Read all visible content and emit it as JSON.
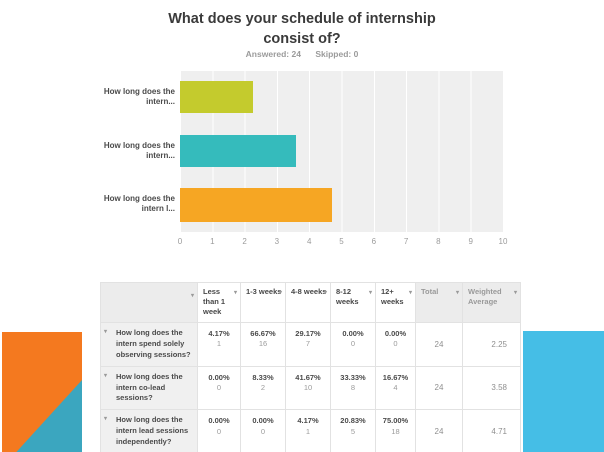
{
  "page": {
    "title_line1": "What does your schedule of internship",
    "title_line2": "consist of?",
    "answered": "Answered: 24",
    "skipped": "Skipped: 0"
  },
  "chart_data": {
    "type": "bar",
    "orientation": "horizontal",
    "title": "What does your schedule of internship consist of?",
    "categories": [
      "How long does the intern...",
      "How long does the intern...",
      "How long does the intern l..."
    ],
    "values": [
      2.25,
      3.58,
      4.71
    ],
    "bar_colors": [
      "#c4cb2d",
      "#35bbbc",
      "#f6a623"
    ],
    "xlim": [
      0,
      10
    ],
    "x_ticks": [
      "0",
      "1",
      "2",
      "3",
      "4",
      "5",
      "6",
      "7",
      "8",
      "9",
      "10"
    ],
    "plot_background": "#efefef",
    "gridline_color": "#ffffff",
    "grid": "vertical",
    "legend": "none"
  },
  "table": {
    "column_headers": [
      {
        "label": ""
      },
      {
        "label": "Less than 1 week"
      },
      {
        "label": "1-3 weeks"
      },
      {
        "label": "4-8 weeks"
      },
      {
        "label": "8-12 weeks"
      },
      {
        "label": "12+ weeks"
      },
      {
        "label": "Total"
      },
      {
        "label": "Weighted Average"
      }
    ],
    "rows": [
      {
        "question": "How long does the intern spend solely observing sessions?",
        "cells": [
          {
            "pct": "4.17%",
            "count": "1"
          },
          {
            "pct": "66.67%",
            "count": "16"
          },
          {
            "pct": "29.17%",
            "count": "7"
          },
          {
            "pct": "0.00%",
            "count": "0"
          },
          {
            "pct": "0.00%",
            "count": "0"
          }
        ],
        "total": "24",
        "weighted_average": "2.25"
      },
      {
        "question": "How long does the intern co-lead sessions?",
        "cells": [
          {
            "pct": "0.00%",
            "count": "0"
          },
          {
            "pct": "8.33%",
            "count": "2"
          },
          {
            "pct": "41.67%",
            "count": "10"
          },
          {
            "pct": "33.33%",
            "count": "8"
          },
          {
            "pct": "16.67%",
            "count": "4"
          }
        ],
        "total": "24",
        "weighted_average": "3.58"
      },
      {
        "question": "How long does the intern lead sessions independently?",
        "cells": [
          {
            "pct": "0.00%",
            "count": "0"
          },
          {
            "pct": "0.00%",
            "count": "0"
          },
          {
            "pct": "4.17%",
            "count": "1"
          },
          {
            "pct": "20.83%",
            "count": "5"
          },
          {
            "pct": "75.00%",
            "count": "18"
          }
        ],
        "total": "24",
        "weighted_average": "4.71"
      }
    ]
  },
  "icons": {
    "sort_glyph": "▾",
    "row_expand_glyph": "▾"
  },
  "decor": {
    "left_orange": "#f4791f",
    "left_teal": "#3ba6bf",
    "right_blue": "#45bee6"
  }
}
